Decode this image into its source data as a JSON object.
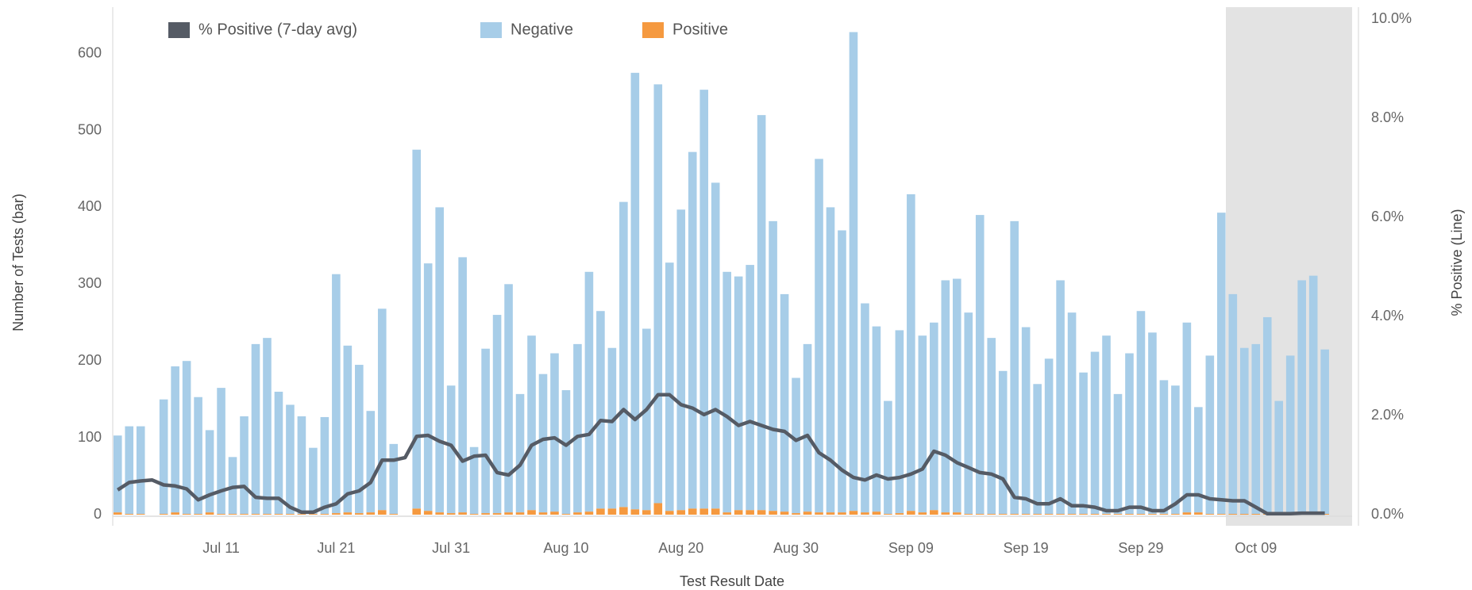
{
  "chart_data": {
    "type": "bar",
    "x_label": "Test Result Date",
    "y_label": "Number of Tests (bar)",
    "y2_label": "% Positive (Line)",
    "ylim": [
      0,
      645
    ],
    "yticks": [
      0,
      100,
      200,
      300,
      400,
      500,
      600
    ],
    "y2lim": [
      0,
      10
    ],
    "y2ticks": [
      {
        "value": 0,
        "label": "0.0%"
      },
      {
        "value": 2,
        "label": "2.0%"
      },
      {
        "value": 4,
        "label": "4.0%"
      },
      {
        "value": 6,
        "label": "6.0%"
      },
      {
        "value": 8,
        "label": "8.0%"
      },
      {
        "value": 10,
        "label": "10.0%"
      }
    ],
    "grid": false,
    "legend": "top",
    "categories": [
      null,
      null,
      null,
      null,
      null,
      null,
      null,
      null,
      null,
      "Jul 11",
      null,
      null,
      null,
      null,
      null,
      null,
      null,
      null,
      null,
      "Jul 21",
      null,
      null,
      null,
      null,
      null,
      null,
      null,
      null,
      null,
      "Jul 31",
      null,
      null,
      null,
      null,
      null,
      null,
      null,
      null,
      null,
      "Aug 10",
      null,
      null,
      null,
      null,
      null,
      null,
      null,
      null,
      null,
      "Aug 20",
      null,
      null,
      null,
      null,
      null,
      null,
      null,
      null,
      null,
      "Aug 30",
      null,
      null,
      null,
      null,
      null,
      null,
      null,
      null,
      null,
      "Sep 09",
      null,
      null,
      null,
      null,
      null,
      null,
      null,
      null,
      null,
      "Sep 19",
      null,
      null,
      null,
      null,
      null,
      null,
      null,
      null,
      null,
      "Sep 29",
      null,
      null,
      null,
      null,
      null,
      null,
      null,
      null,
      null,
      "Oct 09",
      null,
      null,
      null,
      null,
      null,
      null
    ],
    "series": [
      {
        "name": "% Positive (7-day avg)",
        "type": "line",
        "axis": "y2",
        "color": "#555b65",
        "values": [
          0.5,
          0.65,
          0.68,
          0.7,
          0.6,
          0.58,
          0.52,
          0.3,
          0.4,
          0.48,
          0.55,
          0.57,
          0.35,
          0.33,
          0.33,
          0.15,
          0.05,
          0.05,
          0.15,
          0.22,
          0.42,
          0.48,
          0.65,
          1.1,
          1.1,
          1.15,
          1.58,
          1.6,
          1.48,
          1.4,
          1.08,
          1.18,
          1.2,
          0.85,
          0.8,
          1.0,
          1.4,
          1.52,
          1.55,
          1.4,
          1.58,
          1.62,
          1.9,
          1.88,
          2.12,
          1.92,
          2.12,
          2.42,
          2.42,
          2.22,
          2.15,
          2.02,
          2.12,
          1.98,
          1.8,
          1.88,
          1.8,
          1.72,
          1.68,
          1.5,
          1.6,
          1.25,
          1.1,
          0.9,
          0.75,
          0.7,
          0.8,
          0.72,
          0.75,
          0.82,
          0.92,
          1.28,
          1.2,
          1.05,
          0.95,
          0.85,
          0.82,
          0.72,
          0.35,
          0.32,
          0.22,
          0.22,
          0.32,
          0.18,
          0.18,
          0.15,
          0.08,
          0.08,
          0.15,
          0.15,
          0.08,
          0.08,
          0.22,
          0.4,
          0.4,
          0.32,
          0.3,
          0.28,
          0.28,
          0.15,
          0.02,
          0.02,
          0.02,
          0.03,
          0.03,
          0.03
        ]
      },
      {
        "name": "Negative",
        "type": "bar",
        "color": "#a7cde8",
        "values": [
          100,
          114,
          114,
          0,
          149,
          190,
          199,
          152,
          107,
          164,
          74,
          127,
          221,
          229,
          159,
          142,
          127,
          86,
          126,
          311,
          217,
          193,
          132,
          262,
          91,
          0,
          467,
          322,
          397,
          166,
          332,
          87,
          214,
          258,
          297,
          154,
          227,
          180,
          206,
          161,
          219,
          312,
          257,
          209,
          397,
          568,
          236,
          545,
          323,
          391,
          464,
          545,
          424,
          313,
          304,
          319,
          514,
          377,
          283,
          176,
          218,
          460,
          397,
          367,
          623,
          272,
          241,
          147,
          238,
          412,
          230,
          244,
          302,
          304,
          262,
          389,
          229,
          186,
          381,
          243,
          169,
          202,
          304,
          262,
          184,
          211,
          232,
          156,
          209,
          264,
          236,
          174,
          167,
          247,
          137,
          206,
          392,
          286,
          216,
          221,
          256,
          147,
          206,
          303,
          309,
          214
        ]
      },
      {
        "name": "Positive",
        "type": "bar",
        "color": "#f5993f",
        "values": [
          3,
          1,
          1,
          0,
          1,
          3,
          1,
          1,
          3,
          1,
          1,
          1,
          1,
          1,
          1,
          1,
          1,
          1,
          1,
          2,
          3,
          2,
          3,
          6,
          1,
          0,
          8,
          5,
          3,
          2,
          3,
          1,
          2,
          2,
          3,
          3,
          6,
          3,
          4,
          1,
          3,
          4,
          8,
          8,
          10,
          7,
          6,
          15,
          5,
          6,
          8,
          8,
          8,
          3,
          6,
          6,
          6,
          5,
          4,
          2,
          4,
          3,
          3,
          3,
          5,
          3,
          4,
          1,
          2,
          5,
          3,
          6,
          3,
          3,
          1,
          1,
          1,
          1,
          1,
          1,
          1,
          1,
          1,
          1,
          1,
          1,
          1,
          1,
          1,
          1,
          1,
          1,
          1,
          3,
          3,
          1,
          1,
          1,
          1,
          1,
          1,
          1,
          1,
          2,
          2,
          1
        ]
      }
    ]
  }
}
